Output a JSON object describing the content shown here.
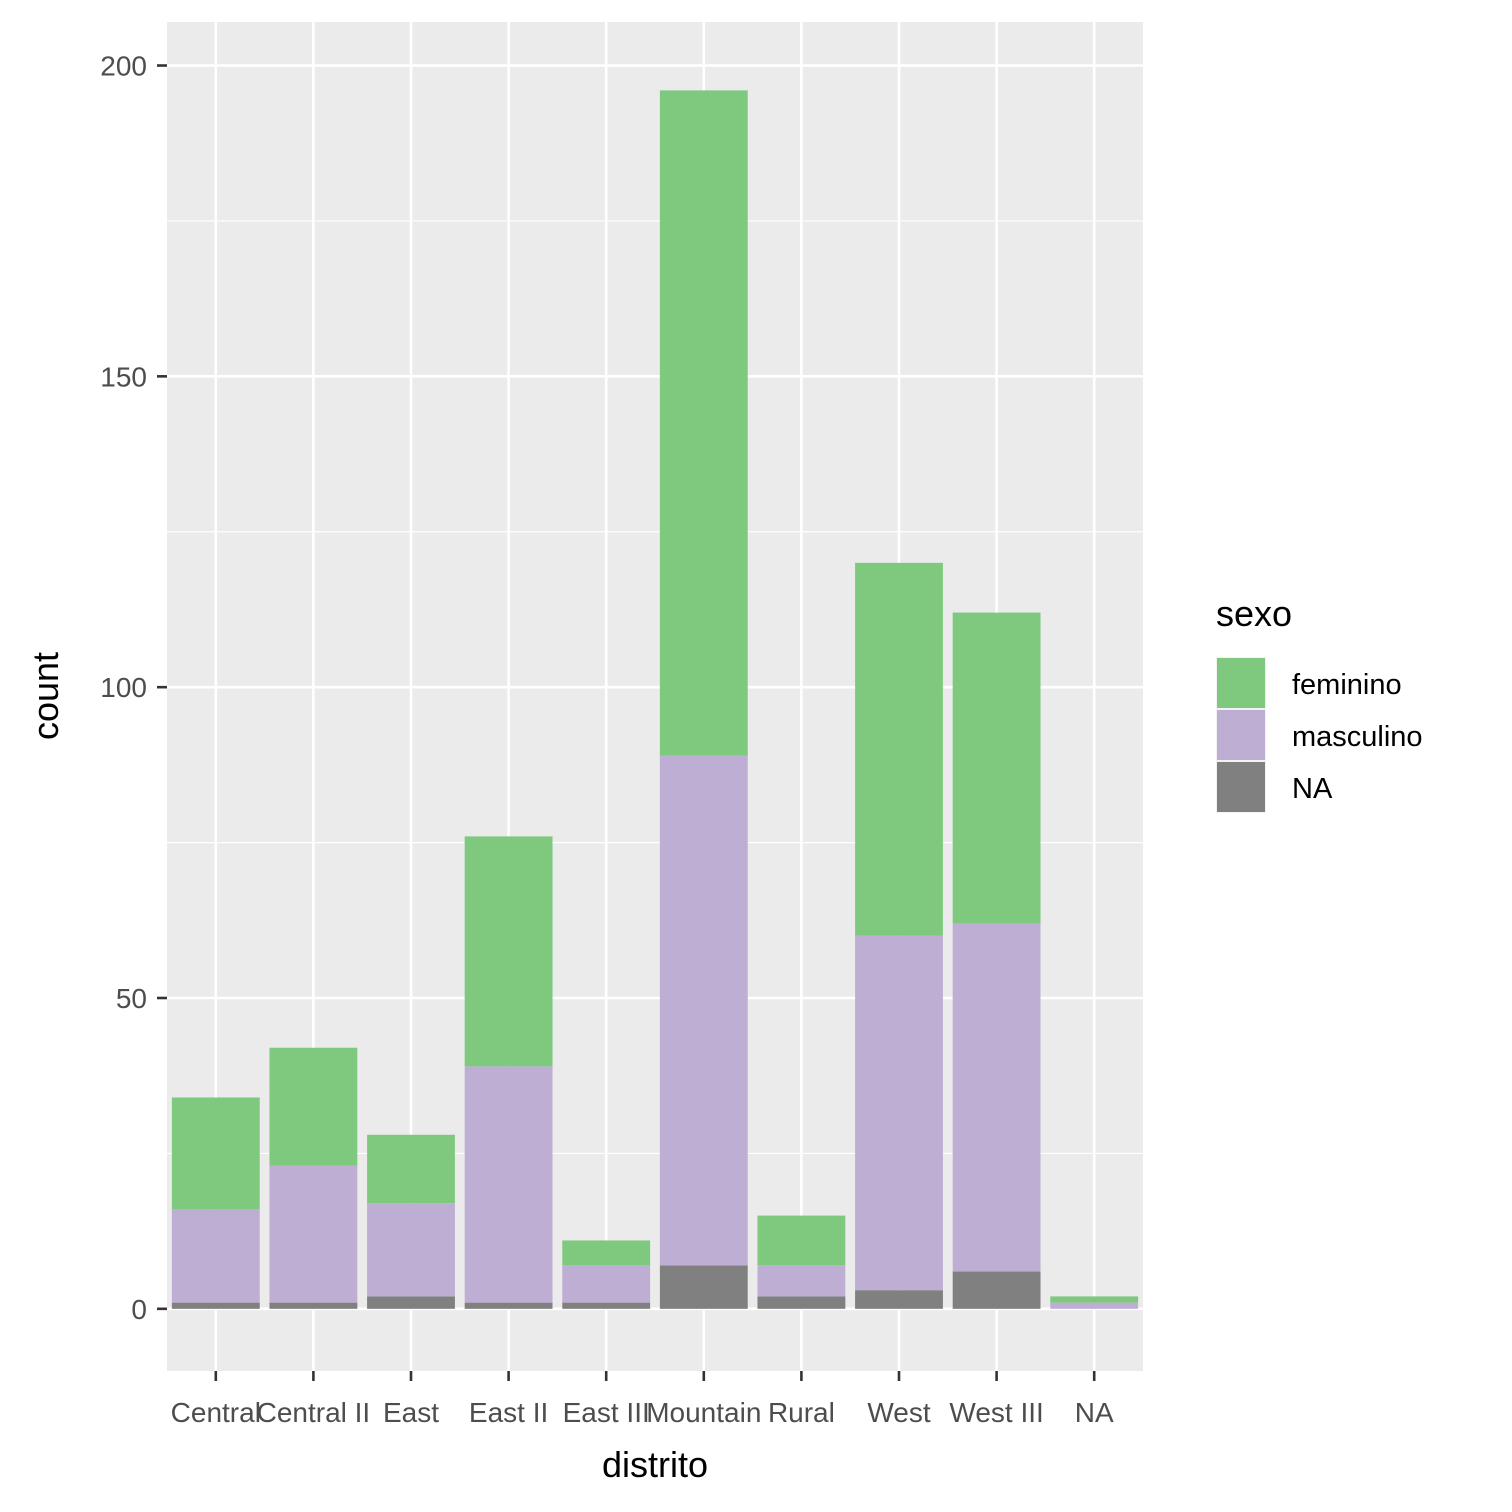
{
  "chart_data": {
    "type": "bar",
    "stacked": true,
    "xlabel": "distrito",
    "ylabel": "count",
    "ylim": [
      -10,
      207
    ],
    "yticks": [
      0,
      50,
      100,
      150,
      200
    ],
    "grid": true,
    "legend_position": "right",
    "legend_title": "sexo",
    "categories": [
      "Central",
      "Central II",
      "East",
      "East II",
      "East III",
      "Mountain",
      "Rural",
      "West",
      "West III",
      "NA"
    ],
    "series": [
      {
        "name": "NA",
        "color": "#808080",
        "values": [
          1,
          1,
          2,
          1,
          1,
          7,
          2,
          3,
          6,
          0
        ]
      },
      {
        "name": "masculino",
        "color": "#BEAED4",
        "values": [
          15,
          22,
          15,
          38,
          6,
          82,
          5,
          57,
          56,
          1
        ]
      },
      {
        "name": "feminino",
        "color": "#7FC97F",
        "values": [
          18,
          19,
          11,
          37,
          4,
          107,
          8,
          60,
          50,
          1
        ]
      }
    ],
    "legend_order": [
      "feminino",
      "masculino",
      "NA"
    ]
  }
}
